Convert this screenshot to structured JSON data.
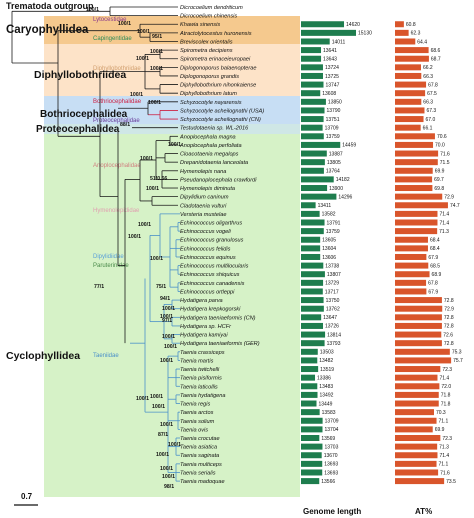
{
  "title": "Trematoda outgroup",
  "scale_label": "0.7",
  "headers": {
    "genome": "Genome length",
    "at": "AT%"
  },
  "orders": [
    {
      "id": "caryo",
      "label": "Caryophyllidea"
    },
    {
      "id": "diphyllo",
      "label": "Diphyllobothriidea"
    },
    {
      "id": "bothrio",
      "label": "Bothriocephalidea"
    },
    {
      "id": "proteo",
      "label": "Proteocephalidea"
    },
    {
      "id": "cyclo",
      "label": "Cyclophyllidea"
    }
  ],
  "families": [
    {
      "label": "Lytocestidae",
      "color": "#8b3a8b"
    },
    {
      "label": "Capingentidae",
      "color": "#2e8b57"
    },
    {
      "label": "Diphyllobothriidae",
      "color": "#d2a070"
    },
    {
      "label": "Bothriocephalidae",
      "color": "#cc2244"
    },
    {
      "label": "Proteocephalidae",
      "color": "#6a3d9a"
    },
    {
      "label": "Anoplocephalidae",
      "color": "#d08080"
    },
    {
      "label": "Hymenolepididae",
      "color": "#e0a0b0"
    },
    {
      "label": "Dipylidiidae",
      "color": "#5aa0d8"
    },
    {
      "label": "Paruterinidae",
      "color": "#4a8a4a"
    },
    {
      "label": "Taeniidae",
      "color": "#4a90c8"
    }
  ],
  "support": [
    "100/1",
    "100/1",
    "100/1",
    "100/1",
    "95/1",
    "100/1",
    "100/1",
    "100/1",
    "88/1",
    "100/1",
    "100/1",
    "51/0.56",
    "100/1",
    "100/1",
    "100/1",
    "100/1",
    "77/1",
    "75/1",
    "100/1",
    "94/1",
    "100/1",
    "97/1",
    "100/1",
    "100/1",
    "100/1",
    "100/1",
    "100/1",
    "100/1",
    "87/1",
    "100/1",
    "100/1",
    "100/1",
    "100/1",
    "100/1",
    "98/1",
    "100/1"
  ],
  "taxa": [
    {
      "name": "Dicrocoelium dendriticum",
      "genome": null,
      "at": null
    },
    {
      "name": "Dicrocoelium chinensis",
      "genome": null,
      "at": null
    },
    {
      "name": "Khawia sinensis",
      "genome": "14620",
      "at": "60.8"
    },
    {
      "name": "Atractolytocestus huronensis",
      "genome": "15130",
      "at": "62.3"
    },
    {
      "name": "Breviscolex orientalis",
      "genome": "14011",
      "at": "64.4"
    },
    {
      "name": "Spirometra decipiens",
      "genome": "13641",
      "at": "68.6"
    },
    {
      "name": "Spirometra erinaceieuropaei",
      "genome": "13643",
      "at": "68.7"
    },
    {
      "name": "Diplogonoporus balaenopterae",
      "genome": "13724",
      "at": "66.2"
    },
    {
      "name": "Diplogonoporus grandis",
      "genome": "13725",
      "at": "66.3"
    },
    {
      "name": "Diphyllobothrium nihonkaiense",
      "genome": "13747",
      "at": "67.8"
    },
    {
      "name": "Diphyllobothrium latum",
      "genome": "13608",
      "at": "67.5"
    },
    {
      "name": "Schyzocotyle nayarensis",
      "genome": "13850",
      "at": "66.3"
    },
    {
      "name": "Schyzocotyle acheilognathi (USA)",
      "genome": "13790",
      "at": "67.3"
    },
    {
      "name": "Schyzocotyle acheilognathi (CN)",
      "genome": "13751",
      "at": "67.0"
    },
    {
      "name": "Testudotaenia sp. WL-2016",
      "genome": "13709",
      "at": "66.1"
    },
    {
      "name": "Anoplocephala magna",
      "genome": "13759",
      "at": "70.6"
    },
    {
      "name": "Anoplocephala perfoliata",
      "genome": "14459",
      "at": "70.0"
    },
    {
      "name": "Cloacotaenia megalops",
      "genome": "13887",
      "at": "71.6"
    },
    {
      "name": "Drepanidotaenia lanceolata",
      "genome": "13805",
      "at": "71.5"
    },
    {
      "name": "Hymenolepis nana",
      "genome": "13764",
      "at": "69.9"
    },
    {
      "name": "Pseudanoplocephala crawfordi",
      "genome": "14182",
      "at": "69.7"
    },
    {
      "name": "Hymenolepis diminuta",
      "genome": "13900",
      "at": "69.8"
    },
    {
      "name": "Dipylidium caninum",
      "genome": "14296",
      "at": "72.9"
    },
    {
      "name": "Cladotaenia vulturi",
      "genome": "13411",
      "at": "74.7"
    },
    {
      "name": "Versteria mustelae",
      "genome": "13582",
      "at": "71.4"
    },
    {
      "name": "Echinococcus oligarthrus",
      "genome": "13791",
      "at": "71.4"
    },
    {
      "name": "Echinococcus vogeli",
      "genome": "13759",
      "at": "71.3"
    },
    {
      "name": "Echinococcus granulosus",
      "genome": "13605",
      "at": "68.4"
    },
    {
      "name": "Echinococcus felidis",
      "genome": "13604",
      "at": "68.4"
    },
    {
      "name": "Echinococcus equinus",
      "genome": "13606",
      "at": "67.9"
    },
    {
      "name": "Echinococcus multilocularis",
      "genome": "13738",
      "at": "68.5"
    },
    {
      "name": "Echinococcus shiquicus",
      "genome": "13807",
      "at": "68.9"
    },
    {
      "name": "Echinococcus canadensis",
      "genome": "13729",
      "at": "67.8"
    },
    {
      "name": "Echinococcus ortleppi",
      "genome": "13717",
      "at": "67.9"
    },
    {
      "name": "Hydatigera parva",
      "genome": "13750",
      "at": "72.8"
    },
    {
      "name": "Hydatigera krepkogorski",
      "genome": "13762",
      "at": "72.9"
    },
    {
      "name": "Hydatigera taeniaeformis (CN)",
      "genome": "13647",
      "at": "72.8"
    },
    {
      "name": "Hydatigera sp. HCFr",
      "genome": "13726",
      "at": "72.8"
    },
    {
      "name": "Hydatigera kamiyai",
      "genome": "13814",
      "at": "72.6"
    },
    {
      "name": "Hydatigera taeniaeformis (GER)",
      "genome": "13793",
      "at": "72.8"
    },
    {
      "name": "Taenia crassiceps",
      "genome": "13503",
      "at": "75.3"
    },
    {
      "name": "Taenia martis",
      "genome": "13482",
      "at": "75.7"
    },
    {
      "name": "Taenia twitchelli",
      "genome": "13519",
      "at": "72.3"
    },
    {
      "name": "Taenia pisiformis",
      "genome": "13386",
      "at": "71.4"
    },
    {
      "name": "Taenia laticollis",
      "genome": "13483",
      "at": "72.0"
    },
    {
      "name": "Taenia hydatigena",
      "genome": "13492",
      "at": "71.8"
    },
    {
      "name": "Taenia regis",
      "genome": "13449",
      "at": "71.8"
    },
    {
      "name": "Taenia arctos",
      "genome": "13583",
      "at": "70.3"
    },
    {
      "name": "Taenia solium",
      "genome": "13709",
      "at": "71.1"
    },
    {
      "name": "Taenia ovis",
      "genome": "13704",
      "at": "69.9"
    },
    {
      "name": "Taenia crocutae",
      "genome": "13569",
      "at": "72.3"
    },
    {
      "name": "Taenia asiatica",
      "genome": "13703",
      "at": "71.3"
    },
    {
      "name": "Taenia saginata",
      "genome": "13670",
      "at": "71.4"
    },
    {
      "name": "Taenia multiceps",
      "genome": "13693",
      "at": "71.1"
    },
    {
      "name": "Taenia serialis",
      "genome": "13693",
      "at": "71.6"
    },
    {
      "name": "Taenia madoquae",
      "genome": "13566",
      "at": "73.5"
    }
  ],
  "colors": {
    "genome_bar": "#1e7d4e",
    "at_bar": "#d9552b",
    "tree_dark": "#1a1a1a",
    "tree_blue": "#4a90c8"
  }
}
